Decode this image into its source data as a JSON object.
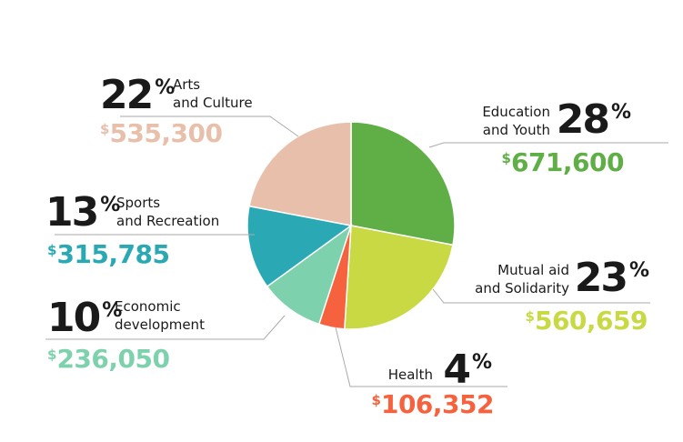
{
  "chart_data": {
    "type": "pie",
    "title": "",
    "currency_symbol": "$",
    "percent_symbol": "%",
    "slices": [
      {
        "label_lines": [
          "Education",
          "and Youth"
        ],
        "percent": 28,
        "amount": "671,600",
        "color": "#5fae46"
      },
      {
        "label_lines": [
          "Mutual aid",
          "and Solidarity"
        ],
        "percent": 23,
        "amount": "560,659",
        "color": "#c8d944"
      },
      {
        "label_lines": [
          "Health"
        ],
        "percent": 4,
        "amount": "106,352",
        "color": "#f7623e"
      },
      {
        "label_lines": [
          "Economic",
          "development"
        ],
        "percent": 10,
        "amount": "236,050",
        "color": "#7dd2ad"
      },
      {
        "label_lines": [
          "Sports",
          "and Recreation"
        ],
        "percent": 13,
        "amount": "315,785",
        "color": "#2aa9b5"
      },
      {
        "label_lines": [
          "Arts",
          "and Culture"
        ],
        "percent": 22,
        "amount": "535,300",
        "color": "#e8bfaa"
      }
    ]
  }
}
